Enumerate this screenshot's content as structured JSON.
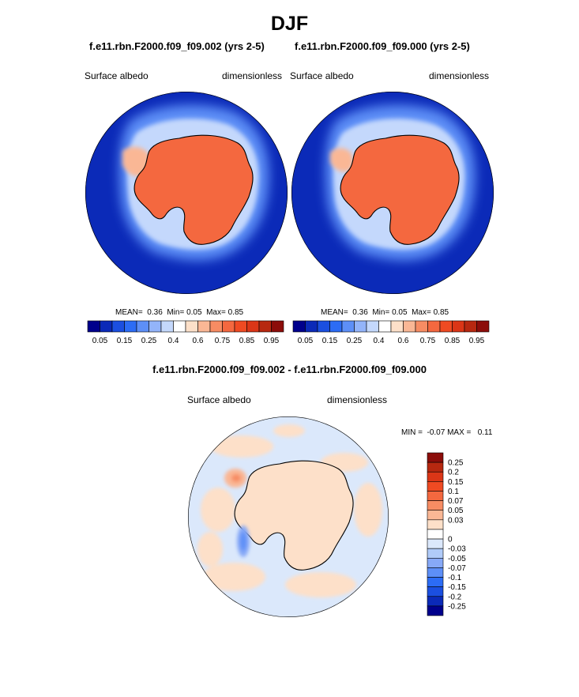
{
  "title": "DJF",
  "panels": [
    {
      "title": "f.e11.rbn.F2000.f09_f09.002 (yrs 2-5)",
      "left_label": "Surface albedo",
      "right_label": "dimensionless",
      "stats": {
        "mean_label": "MEAN=",
        "mean": "0.36",
        "min_label": "Min=",
        "min": "0.05",
        "max_label": "Max=",
        "max": "0.85"
      }
    },
    {
      "title": "f.e11.rbn.F2000.f09_f09.000 (yrs 2-5)",
      "left_label": "Surface albedo",
      "right_label": "dimensionless",
      "stats": {
        "mean_label": "MEAN=",
        "mean": "0.36",
        "min_label": "Min=",
        "min": "0.05",
        "max_label": "Max=",
        "max": "0.85"
      }
    }
  ],
  "diff": {
    "title": "f.e11.rbn.F2000.f09_f09.002 - f.e11.rbn.F2000.f09_f09.000",
    "left_label": "Surface albedo",
    "right_label": "dimensionless",
    "minmax_text": "MIN =  -0.07 MAX =   0.11"
  },
  "chart_data": [
    {
      "type": "heatmap",
      "map": "south-polar-stereographic",
      "title": "f.e11.rbn.F2000.f09_f09.002 (yrs 2-5)",
      "variable": "Surface albedo",
      "units": "dimensionless",
      "mean": 0.36,
      "min": 0.05,
      "max": 0.85,
      "colorbar": {
        "orientation": "horizontal",
        "colors": [
          "#00008c",
          "#0b2ab8",
          "#1b4fe0",
          "#2c6cf5",
          "#5d8ff7",
          "#93b4fa",
          "#c4d8fc",
          "#ffffff",
          "#fde0c9",
          "#fab795",
          "#f78c63",
          "#f4683f",
          "#ef4a22",
          "#db3617",
          "#b72810",
          "#8c0d0a"
        ],
        "tick_labels": [
          "0.05",
          "0.15",
          "0.25",
          "0.4",
          "0.6",
          "0.75",
          "0.85",
          "0.95"
        ]
      }
    },
    {
      "type": "heatmap",
      "map": "south-polar-stereographic",
      "title": "f.e11.rbn.F2000.f09_f09.000 (yrs 2-5)",
      "variable": "Surface albedo",
      "units": "dimensionless",
      "mean": 0.36,
      "min": 0.05,
      "max": 0.85,
      "colorbar": {
        "orientation": "horizontal",
        "colors": [
          "#00008c",
          "#0b2ab8",
          "#1b4fe0",
          "#2c6cf5",
          "#5d8ff7",
          "#93b4fa",
          "#c4d8fc",
          "#ffffff",
          "#fde0c9",
          "#fab795",
          "#f78c63",
          "#f4683f",
          "#ef4a22",
          "#db3617",
          "#b72810",
          "#8c0d0a"
        ],
        "tick_labels": [
          "0.05",
          "0.15",
          "0.25",
          "0.4",
          "0.6",
          "0.75",
          "0.85",
          "0.95"
        ]
      }
    },
    {
      "type": "heatmap",
      "map": "south-polar-stereographic",
      "title": "f.e11.rbn.F2000.f09_f09.002 - f.e11.rbn.F2000.f09_f09.000",
      "variable": "Surface albedo",
      "units": "dimensionless",
      "min": -0.07,
      "max": 0.11,
      "colorbar": {
        "orientation": "vertical",
        "colors_top_to_bottom": [
          "#8c0d0a",
          "#b72810",
          "#db3617",
          "#ef4a22",
          "#f4683f",
          "#f78c63",
          "#fab795",
          "#fde0c9",
          "#ffffff",
          "#dbe8fb",
          "#b0cbf9",
          "#87a9f7",
          "#5d8ff7",
          "#2c6cf5",
          "#1b4fe0",
          "#0b2ab8",
          "#00008c"
        ],
        "tick_labels": [
          "0.25",
          "0.2",
          "0.15",
          "0.1",
          "0.07",
          "0.05",
          "0.03",
          "0",
          "-0.03",
          "-0.05",
          "-0.07",
          "-0.1",
          "-0.15",
          "-0.2",
          "-0.25"
        ]
      }
    }
  ]
}
